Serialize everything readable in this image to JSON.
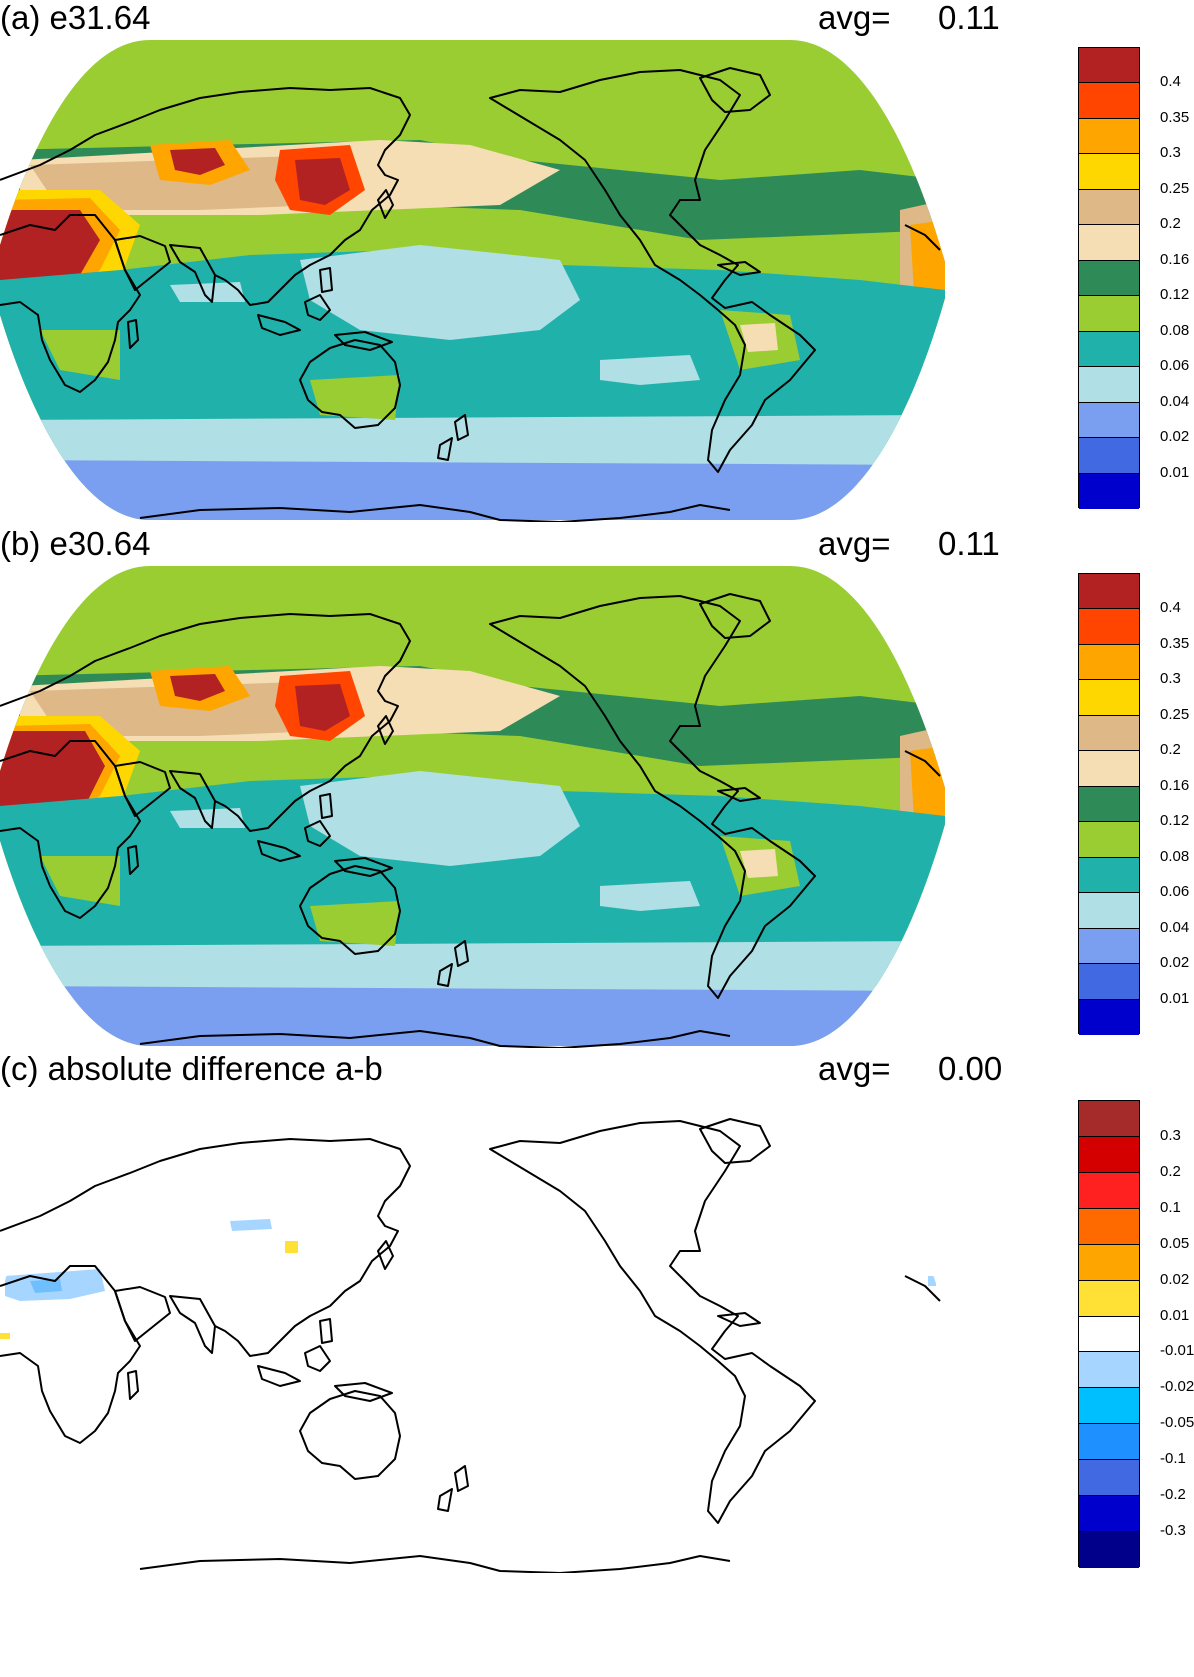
{
  "panels": [
    {
      "id": "a",
      "title": "(a) e31.64",
      "avg_label": "avg=",
      "avg_value": "0.11",
      "colorbar": {
        "colors": [
          "#b22222",
          "#ff4500",
          "#ffa500",
          "#ffd700",
          "#deb887",
          "#f5deb3",
          "#2e8b57",
          "#9acd32",
          "#20b2aa",
          "#b0e0e6",
          "#7b9ff0",
          "#4169e1",
          "#0000cd"
        ],
        "labels": [
          "0.4",
          "0.35",
          "0.3",
          "0.25",
          "0.2",
          "0.16",
          "0.12",
          "0.08",
          "0.06",
          "0.04",
          "0.02",
          "0.01"
        ]
      }
    },
    {
      "id": "b",
      "title": "(b) e30.64",
      "avg_label": "avg=",
      "avg_value": "0.11",
      "colorbar": {
        "colors": [
          "#b22222",
          "#ff4500",
          "#ffa500",
          "#ffd700",
          "#deb887",
          "#f5deb3",
          "#2e8b57",
          "#9acd32",
          "#20b2aa",
          "#b0e0e6",
          "#7b9ff0",
          "#4169e1",
          "#0000cd"
        ],
        "labels": [
          "0.4",
          "0.35",
          "0.3",
          "0.25",
          "0.2",
          "0.16",
          "0.12",
          "0.08",
          "0.06",
          "0.04",
          "0.02",
          "0.01"
        ]
      }
    },
    {
      "id": "c",
      "title": "(c) absolute difference a-b",
      "avg_label": "avg=",
      "avg_value": "0.00",
      "colorbar": {
        "colors": [
          "#a52a2a",
          "#d40000",
          "#ff2020",
          "#ff6a00",
          "#ffa500",
          "#ffe135",
          "#ffffff",
          "#a6d6ff",
          "#00bfff",
          "#1e90ff",
          "#4169e1",
          "#0000cd",
          "#00008b"
        ],
        "labels": [
          "0.3",
          "0.2",
          "0.1",
          "0.05",
          "0.02",
          "0.01",
          "-0.01",
          "-0.02",
          "-0.05",
          "-0.1",
          "-0.2",
          "-0.3"
        ]
      }
    }
  ]
}
